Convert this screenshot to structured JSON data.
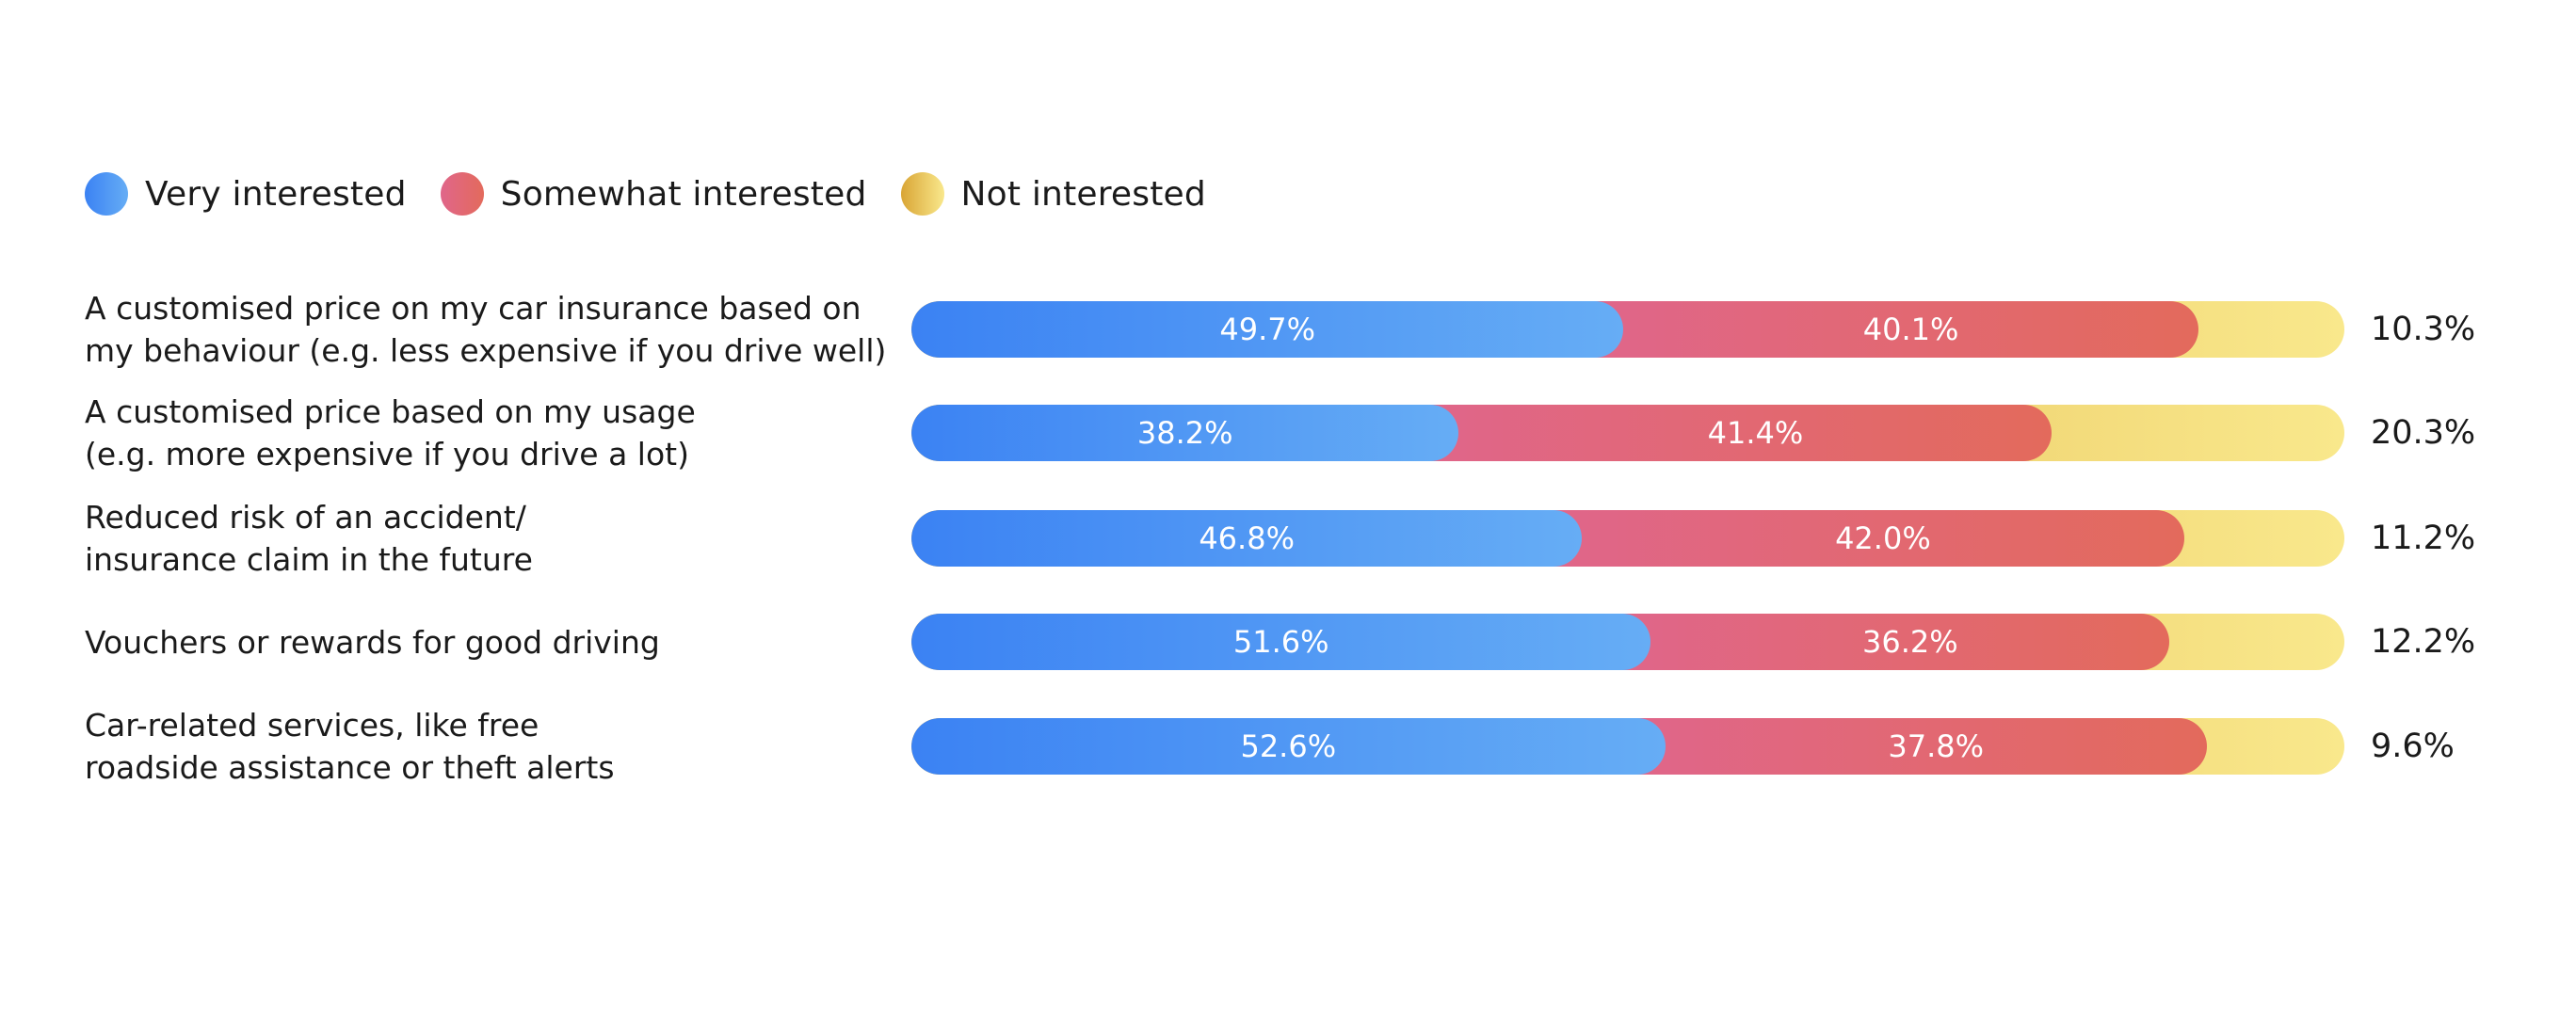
{
  "chart_data": {
    "type": "bar",
    "orientation": "horizontal",
    "stacked": true,
    "normalized": true,
    "legend_position": "top-left",
    "categories": [
      "A customised price on my car insurance based on\nmy behaviour (e.g. less expensive if you drive well)",
      "A customised price based on my usage\n(e.g. more expensive if you drive a lot)",
      "Reduced risk of an accident/\ninsurance claim in the future",
      "Vouchers or rewards for good driving",
      "Car-related services, like free\nroadside assistance or theft alerts"
    ],
    "series": [
      {
        "name": "Very interested",
        "values": [
          49.7,
          38.2,
          46.8,
          51.6,
          52.6
        ],
        "labels": [
          "49.7%",
          "38.2%",
          "46.8%",
          "51.6%",
          "52.6%"
        ],
        "color": "#3b82f3"
      },
      {
        "name": "Somewhat interested",
        "values": [
          40.1,
          41.4,
          42.0,
          36.2,
          37.8
        ],
        "labels": [
          "40.1%",
          "41.4%",
          "42.0%",
          "36.2%",
          "37.8%"
        ],
        "color": "#e0668a"
      },
      {
        "name": "Not interested",
        "values": [
          10.3,
          20.3,
          11.2,
          12.2,
          9.6
        ],
        "labels": [
          "10.3%",
          "20.3%",
          "11.2%",
          "12.2%",
          "9.6%"
        ],
        "color": "#d9a535"
      }
    ],
    "xlim": [
      0,
      100
    ]
  }
}
